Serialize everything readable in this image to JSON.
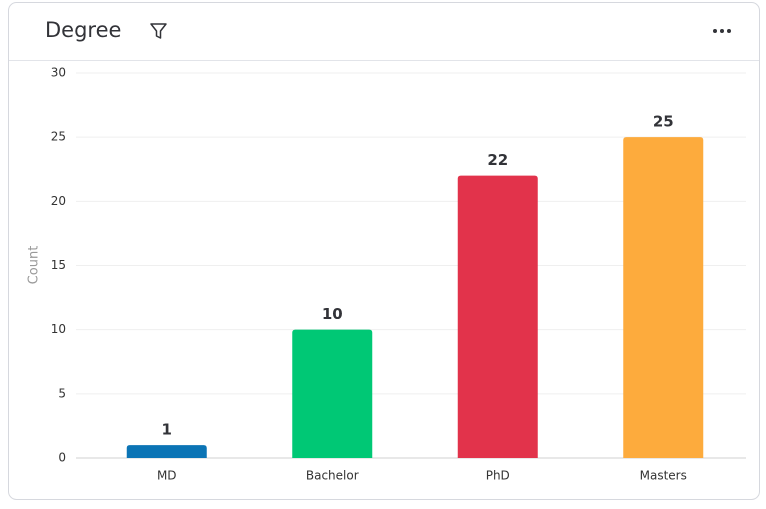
{
  "chart_data": {
    "type": "bar",
    "title": "Degree",
    "y_label": "Count",
    "categories": [
      "MD",
      "Bachelor",
      "PhD",
      "Masters"
    ],
    "values": [
      1,
      10,
      22,
      25
    ],
    "colors": [
      "#0b74b5",
      "#00c875",
      "#e2334b",
      "#fdab3d"
    ],
    "ylim": [
      0,
      30
    ],
    "yticks": [
      0,
      5,
      10,
      15,
      20,
      25,
      30
    ],
    "grid": true
  }
}
